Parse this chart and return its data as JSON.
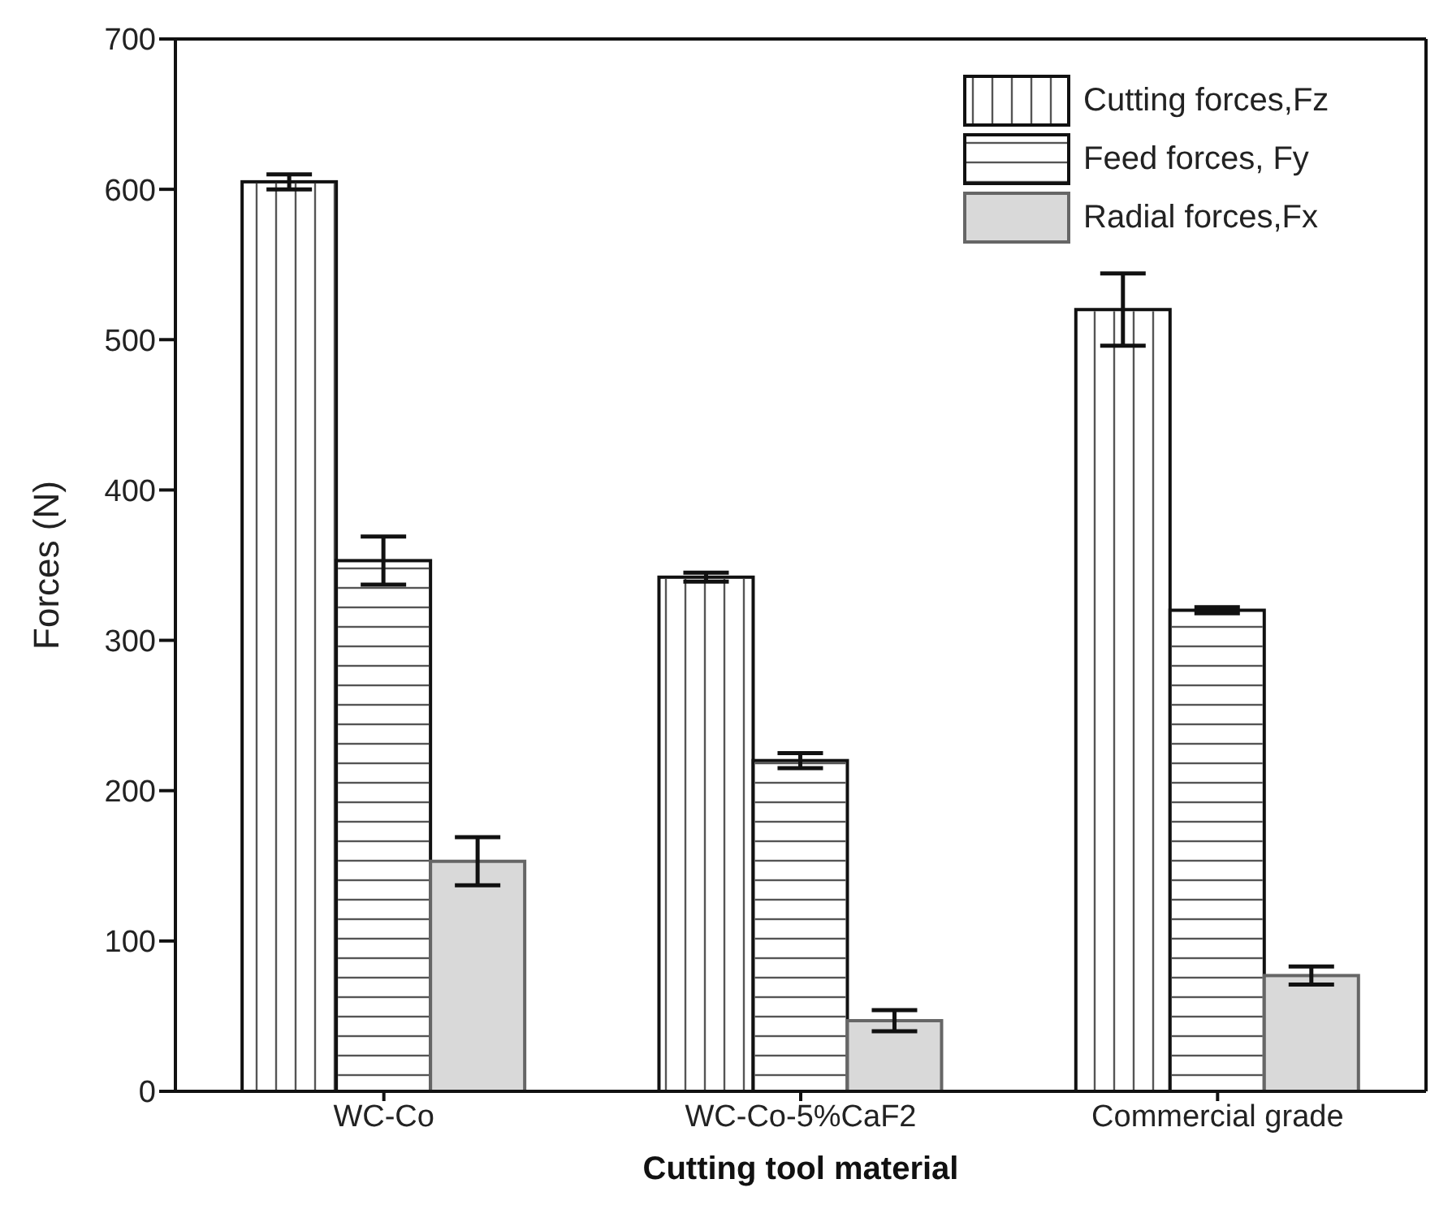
{
  "chart_data": {
    "type": "bar",
    "xlabel": "Cutting tool material",
    "ylabel": "Forces (N)",
    "categories": [
      "WC-Co",
      "WC-Co-5%CaF2",
      "Commercial grade"
    ],
    "series": [
      {
        "name": "Cutting forces,Fz",
        "color": "#ffffff",
        "values": [
          605,
          342,
          520
        ],
        "errors": [
          5,
          3,
          24
        ]
      },
      {
        "name": "Feed forces, Fy",
        "color": "#ffffff",
        "values": [
          353,
          220,
          320
        ],
        "errors": [
          16,
          5,
          2
        ]
      },
      {
        "name": "Radial forces,Fx",
        "color": "#d9d9d9",
        "values": [
          153,
          47,
          77
        ],
        "errors": [
          16,
          7,
          6
        ]
      }
    ],
    "ylim": [
      0,
      700
    ],
    "yticks": [
      0,
      100,
      200,
      300,
      400,
      500,
      600,
      700
    ],
    "grid": false,
    "legend": "top right"
  }
}
